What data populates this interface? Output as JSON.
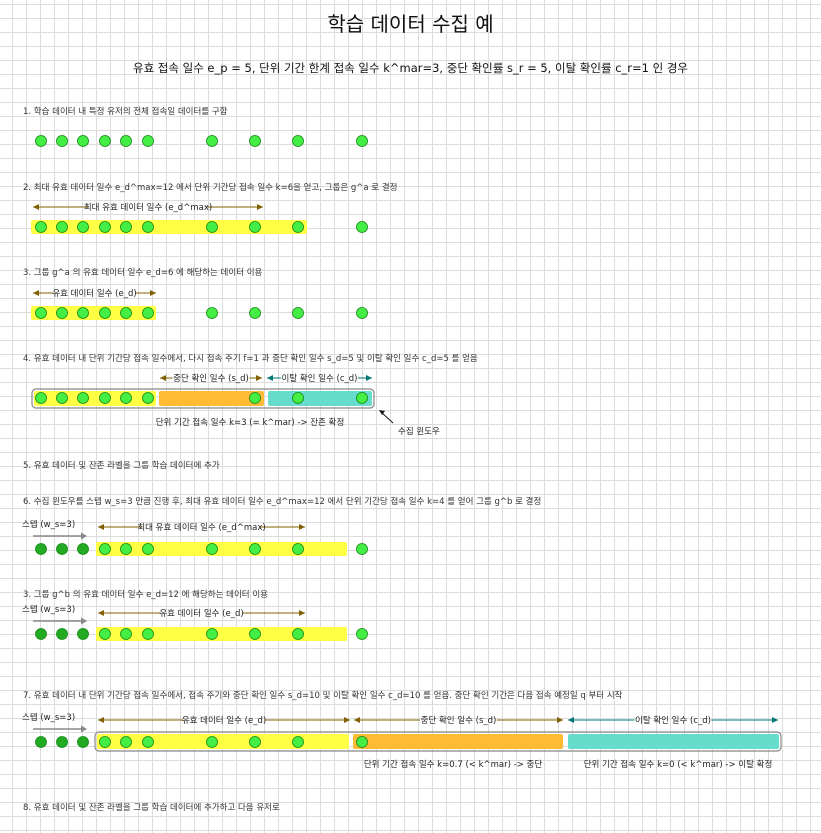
{
  "title": "학습 데이터 수집 예",
  "subtitle": "유효 접속 일수 e_p = 5, 단위 기간 한계 접속 일수 k^mar=3, 중단 확인률 s_r = 5, 이탈 확인률 c_r=1 인 경우",
  "colors": {
    "dot_light": "#44ee44",
    "dot_dark": "#22aa22",
    "dot_stroke": "#118811",
    "yellow": "#ffff44",
    "orange": "#ffbb33",
    "teal": "#66ddcc",
    "arrow_olive": "#806000",
    "arrow_teal": "#007777",
    "arrow_gray": "#888888"
  },
  "steps": [
    {
      "text": "1. 학습 데이터 내 특정 유저의 전체 접속일 데이터를 구함"
    },
    {
      "text": "2. 최대 유효 데이터 일수 e_d^max=12 에서 단위 기간당 접속 일수 k=6을 얻고, 그룹은 g^a 로 결정"
    },
    {
      "text": "3. 그룹 g^a 의 유효 데이터 일수 e_d=6 에 해당하는 데이터 이용"
    },
    {
      "text": "4. 유효 데이터 내 단위 기간당 접속 일수에서, 다시 접속 주기 f=1 과 중단 확인 일수 s_d=5 및 이탈 확인 일수 c_d=5 를 얻음"
    },
    {
      "text": "5. 유효 데이터 및 잔존 라벨을 그룹 학습 데이터에 추가"
    },
    {
      "text": "6. 수집 윈도우를 스텝 w_s=3 만큼 진행 후, 최대 유효 데이터 일수 e_d^max=12 에서 단위 기간당 접속 일수 k=4 를 얻어 그룹 g^b 로 결정"
    },
    {
      "text": "3. 그룹 g^b 의 유효 데이터 일수 e_d=12 에 해당하는 데이터 이용"
    },
    {
      "text": "7. 유효 데이터 내 단위 기간당 접속 일수에서, 접속 주기와 중단 확인 일수 s_d=10 및 이탈 확인 일수 c_d=10 를 얻음. 중단 확인 기간은 다음 접속 예정일 q 부터 시작"
    },
    {
      "text": "8. 유효 데이터 및 잔존 라벨을 그룹 학습 데이터에 추가하고 다음 유저로"
    }
  ],
  "labels": {
    "max_valid_days": "최대 유효 데이터 일수 (e_d^max)",
    "valid_days": "유효 데이터 일수 (e_d)",
    "stop_check_days": "중단 확인 일수 (s_d)",
    "churn_check_days": "이탈 확인 일수 (c_d)",
    "collect_window": "수집 윈도우",
    "result_survive": "단위 기간 접속 일수 k=3 (= k^mar)  -> 잔존 확정",
    "step_label": "스텝 (w_s=3)",
    "result_stop": "단위 기간 접속 일수 k=0.7 (< k^mar)  -> 중단",
    "result_churn": "단위 기간 접속 일수 k=0 (< k^mar)  -> 이탈 확정"
  }
}
